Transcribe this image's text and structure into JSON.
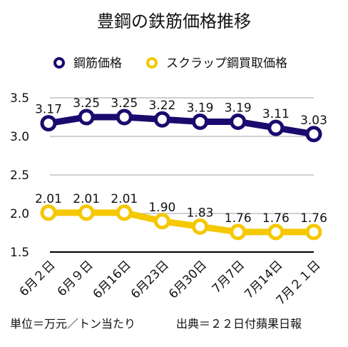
{
  "chart_data": {
    "type": "line",
    "title": "豊鋼の鉄筋価格推移",
    "categories": [
      "6月２日",
      "6月９日",
      "6月16日",
      "6月23日",
      "6月30日",
      "7月7日",
      "7月14日",
      "7月２１日"
    ],
    "series": [
      {
        "name": "鋼筋価格",
        "color": "#1a0a6e",
        "values": [
          3.17,
          3.25,
          3.25,
          3.22,
          3.19,
          3.19,
          3.11,
          3.03
        ]
      },
      {
        "name": "スクラップ鋼買取価格",
        "color": "#f5c800",
        "values": [
          2.01,
          2.01,
          2.01,
          1.9,
          1.83,
          1.76,
          1.76,
          1.76
        ]
      }
    ],
    "ylim": [
      1.5,
      3.5
    ],
    "yticks": [
      "1.5",
      "2.0",
      "2.5",
      "3.0",
      "3.5"
    ],
    "grid": true,
    "legend_position": "top"
  },
  "footer": {
    "unit": "単位＝万元／トン当たり",
    "source": "出典＝２２日付蘋果日報"
  }
}
